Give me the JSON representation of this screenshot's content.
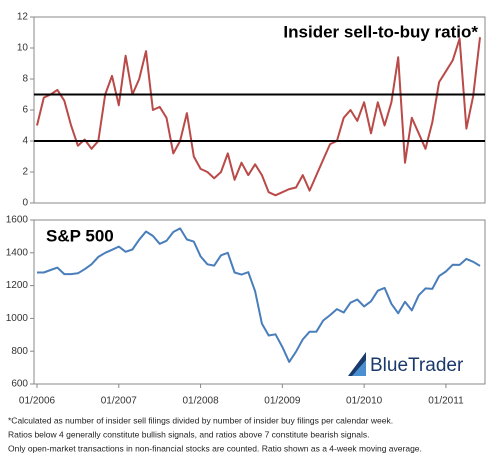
{
  "chart_data": [
    {
      "type": "line",
      "title": "Insider sell-to-buy ratio*",
      "x": [
        "2006-01",
        "2006-02",
        "2006-03",
        "2006-04",
        "2006-05",
        "2006-06",
        "2006-07",
        "2006-08",
        "2006-09",
        "2006-10",
        "2006-11",
        "2006-12",
        "2007-01",
        "2007-02",
        "2007-03",
        "2007-04",
        "2007-05",
        "2007-06",
        "2007-07",
        "2007-08",
        "2007-09",
        "2007-10",
        "2007-11",
        "2007-12",
        "2008-01",
        "2008-02",
        "2008-03",
        "2008-04",
        "2008-05",
        "2008-06",
        "2008-07",
        "2008-08",
        "2008-09",
        "2008-10",
        "2008-11",
        "2008-12",
        "2009-01",
        "2009-02",
        "2009-03",
        "2009-04",
        "2009-05",
        "2009-06",
        "2009-07",
        "2009-08",
        "2009-09",
        "2009-10",
        "2009-11",
        "2009-12",
        "2010-01",
        "2010-02",
        "2010-03",
        "2010-04",
        "2010-05",
        "2010-06",
        "2010-07",
        "2010-08",
        "2010-09",
        "2010-10",
        "2010-11",
        "2010-12",
        "2011-01",
        "2011-02",
        "2011-03",
        "2011-04",
        "2011-05",
        "2011-06"
      ],
      "series": [
        {
          "color": "#b94a48",
          "values": [
            5.0,
            6.8,
            7.0,
            7.3,
            6.6,
            5.0,
            3.7,
            4.1,
            3.5,
            4.0,
            7.0,
            8.2,
            6.3,
            9.5,
            7.0,
            8.0,
            9.8,
            6.0,
            6.2,
            5.5,
            3.2,
            4.0,
            5.8,
            3.0,
            2.2,
            2.0,
            1.6,
            2.0,
            3.2,
            1.5,
            2.6,
            1.8,
            2.5,
            1.8,
            0.7,
            0.5,
            0.7,
            0.9,
            1.0,
            1.8,
            0.8,
            1.8,
            2.8,
            3.8,
            4.0,
            5.5,
            6.0,
            5.3,
            6.5,
            4.5,
            6.5,
            5.0,
            6.5,
            9.4,
            2.6,
            5.5,
            4.5,
            3.5,
            5.2,
            7.8,
            8.5,
            9.2,
            10.6,
            4.8,
            6.9,
            10.7
          ]
        }
      ],
      "xlim": [
        "2006-01",
        "2011-06"
      ],
      "ylim": [
        0,
        12
      ],
      "yticks": [
        0,
        2,
        4,
        6,
        8,
        10,
        12
      ],
      "hlines": [
        4,
        7
      ],
      "hline_color": "#000000"
    },
    {
      "type": "line",
      "title": "S&P 500",
      "x": [
        "2006-01",
        "2006-02",
        "2006-03",
        "2006-04",
        "2006-05",
        "2006-06",
        "2006-07",
        "2006-08",
        "2006-09",
        "2006-10",
        "2006-11",
        "2006-12",
        "2007-01",
        "2007-02",
        "2007-03",
        "2007-04",
        "2007-05",
        "2007-06",
        "2007-07",
        "2007-08",
        "2007-09",
        "2007-10",
        "2007-11",
        "2007-12",
        "2008-01",
        "2008-02",
        "2008-03",
        "2008-04",
        "2008-05",
        "2008-06",
        "2008-07",
        "2008-08",
        "2008-09",
        "2008-10",
        "2008-11",
        "2008-12",
        "2009-01",
        "2009-02",
        "2009-03",
        "2009-04",
        "2009-05",
        "2009-06",
        "2009-07",
        "2009-08",
        "2009-09",
        "2009-10",
        "2009-11",
        "2009-12",
        "2010-01",
        "2010-02",
        "2010-03",
        "2010-04",
        "2010-05",
        "2010-06",
        "2010-07",
        "2010-08",
        "2010-09",
        "2010-10",
        "2010-11",
        "2010-12",
        "2011-01",
        "2011-02",
        "2011-03",
        "2011-04",
        "2011-05",
        "2011-06"
      ],
      "series": [
        {
          "color": "#4a7ebb",
          "values": [
            1280,
            1280,
            1295,
            1310,
            1270,
            1270,
            1275,
            1300,
            1330,
            1375,
            1400,
            1418,
            1438,
            1406,
            1420,
            1480,
            1530,
            1503,
            1455,
            1473,
            1527,
            1549,
            1481,
            1468,
            1378,
            1330,
            1322,
            1385,
            1400,
            1280,
            1267,
            1282,
            1166,
            968,
            896,
            903,
            825,
            735,
            797,
            872,
            919,
            919,
            987,
            1020,
            1057,
            1036,
            1096,
            1115,
            1073,
            1104,
            1169,
            1186,
            1089,
            1031,
            1101,
            1049,
            1141,
            1183,
            1180,
            1258,
            1286,
            1327,
            1326,
            1363,
            1345,
            1320
          ]
        }
      ],
      "xlim": [
        "2006-01",
        "2011-06"
      ],
      "ylim": [
        600,
        1600
      ],
      "yticks": [
        600,
        800,
        1000,
        1200,
        1400,
        1600
      ],
      "xticks": [
        {
          "value": "2006-01",
          "label": "01/2006"
        },
        {
          "value": "2007-01",
          "label": "01/2007"
        },
        {
          "value": "2008-01",
          "label": "01/2008"
        },
        {
          "value": "2009-01",
          "label": "01/2009"
        },
        {
          "value": "2010-01",
          "label": "01/2010"
        },
        {
          "value": "2011-01",
          "label": "01/2011"
        }
      ]
    }
  ],
  "brand": "BlueTrader",
  "footnote": [
    "*Calculated as number of insider sell filings divided by number of insider buy filings per calendar week.",
    "Ratios below 4 generally constitute bullish signals, and ratios above 7 constitute bearish signals.",
    "Only open-market transactions in non-financial stocks are counted.  Ratio shown as a 4-week moving average."
  ]
}
